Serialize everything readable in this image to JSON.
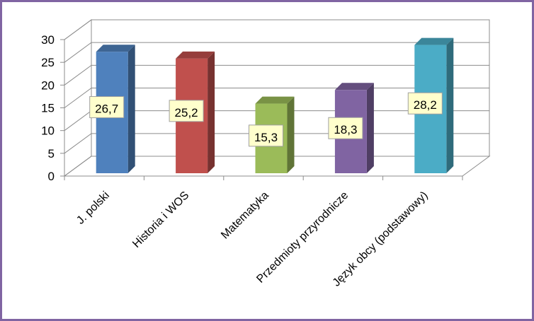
{
  "chart_data": {
    "type": "bar",
    "style": "3d-column",
    "categories": [
      "J. polski",
      "Historia i WOS",
      "Matematyka",
      "Przedmioty przyrodnicze",
      "Język obcy (podstawowy)"
    ],
    "values": [
      26.7,
      25.2,
      15.3,
      18.3,
      28.2
    ],
    "value_labels": [
      "26,7",
      "25,2",
      "15,3",
      "18,3",
      "28,2"
    ],
    "ylim": [
      0,
      30
    ],
    "yticks": [
      "0",
      "5",
      "10",
      "15",
      "20",
      "25",
      "30"
    ],
    "grid": true,
    "legend": "none",
    "bar_colors": [
      "#4f81bd",
      "#c0504d",
      "#9bbb59",
      "#8064a2",
      "#4bacc6"
    ],
    "label_box_color": "#ffffcc",
    "frame_color": "#8064a2"
  }
}
